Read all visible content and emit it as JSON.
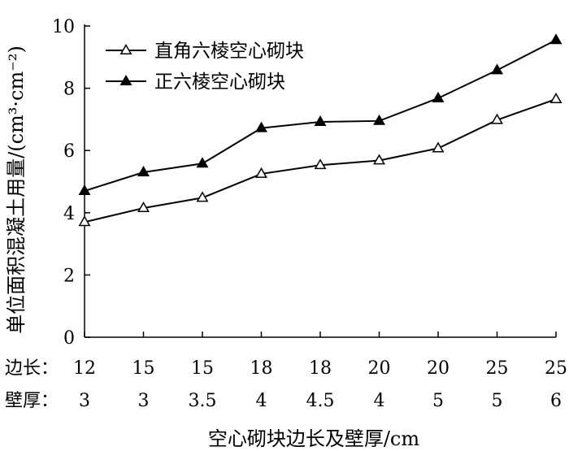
{
  "chart_data": {
    "type": "line",
    "title": "",
    "xlabel": "空心砌块边长及壁厚/cm",
    "ylabel": "单位面积混凝土用量/(cm³·cm⁻²)",
    "ylim": [
      0,
      10
    ],
    "yticks": [
      0,
      2,
      4,
      6,
      8,
      10
    ],
    "grid": false,
    "legend_position": "top-left",
    "category_rows": [
      {
        "label": "边长：",
        "values": [
          "12",
          "15",
          "15",
          "18",
          "18",
          "20",
          "20",
          "25",
          "25"
        ]
      },
      {
        "label": "壁厚：",
        "values": [
          "3",
          "3",
          "3.5",
          "4",
          "4.5",
          "4",
          "5",
          "5",
          "6"
        ]
      }
    ],
    "series": [
      {
        "name": "直角六棱空心砌块",
        "marker": "open-triangle",
        "values": [
          3.7,
          4.15,
          4.48,
          5.25,
          5.53,
          5.68,
          6.07,
          6.98,
          7.65
        ]
      },
      {
        "name": "正六棱空心砌块",
        "marker": "filled-triangle",
        "values": [
          4.7,
          5.3,
          5.58,
          6.72,
          6.92,
          6.95,
          7.68,
          8.58,
          9.55
        ]
      }
    ]
  }
}
